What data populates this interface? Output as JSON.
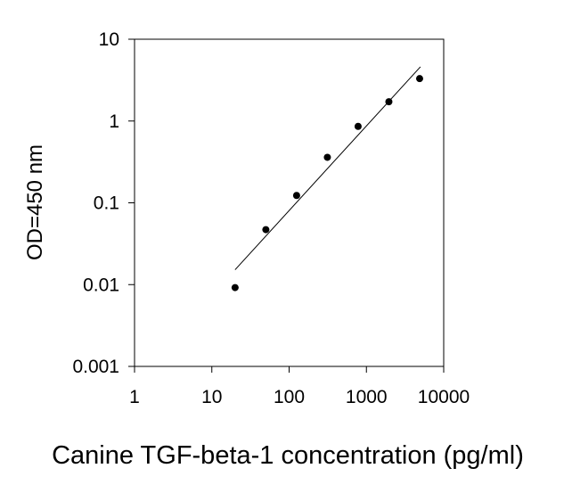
{
  "chart_data": {
    "type": "scatter",
    "x_scale": "log",
    "y_scale": "log",
    "xlim": [
      1,
      10000
    ],
    "ylim": [
      0.001,
      10
    ],
    "xticks": [
      "1",
      "10",
      "100",
      "1000",
      "10000"
    ],
    "yticks": [
      "0.001",
      "0.01",
      "0.1",
      "1",
      "10"
    ],
    "xlabel": "Canine TGF-beta-1 concentration (pg/ml)",
    "ylabel": "OD=450 nm",
    "grid": false,
    "series": [
      {
        "x": [
          20,
          50,
          125,
          312.5,
          781,
          1953,
          4882
        ],
        "y": [
          0.0092,
          0.047,
          0.123,
          0.36,
          0.86,
          1.72,
          3.3
        ]
      }
    ],
    "fit_line": {
      "x": [
        20,
        5000
      ],
      "y": [
        0.0152,
        4.6
      ]
    },
    "colors": {
      "points": "#000000",
      "axes": "#000000",
      "line": "#000000"
    }
  }
}
